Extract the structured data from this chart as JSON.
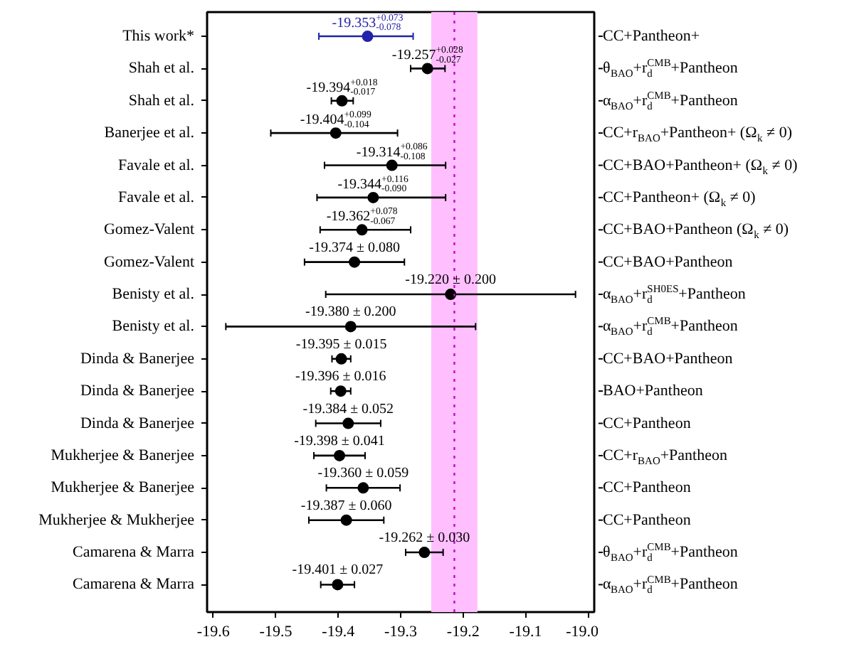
{
  "chart_data": {
    "type": "scatter",
    "orientation": "horizontal",
    "marker": "circle",
    "grid": false,
    "categories": [
      "This work*",
      "Shah et al.",
      "Shah et al.",
      "Banerjee et al.",
      "Favale et al.",
      "Favale et al.",
      "Gomez-Valent",
      "Gomez-Valent",
      "Benisty et al.",
      "Benisty et al.",
      "Dinda & Banerjee",
      "Dinda & Banerjee",
      "Dinda & Banerjee",
      "Mukherjee & Banerjee",
      "Mukherjee & Banerjee",
      "Mukherjee & Mukherjee",
      "Camarena & Marra",
      "Camarena & Marra"
    ],
    "y2_categories": [
      "CC+Pantheon+",
      "θ$_{BAO}$+r$_{d}$$^{CMB}$+Pantheon",
      "α$_{BAO}$+r$_{d}$$^{CMB}$+Pantheon",
      "CC+r$_{BAO}$+Pantheon+ (Ω$_{k}$ ≠ 0)",
      "CC+BAO+Pantheon+ (Ω$_{k}$ ≠ 0)",
      "CC+Pantheon+ (Ω$_{k}$ ≠ 0)",
      "CC+BAO+Pantheon (Ω$_{k}$ ≠ 0)",
      "CC+BAO+Pantheon",
      "α$_{BAO}$+r$_{d}$$^{SH0ES}$+Pantheon",
      "α$_{BAO}$+r$_{d}$$^{CMB}$+Pantheon",
      "CC+BAO+Pantheon",
      "BAO+Pantheon",
      "CC+Pantheon",
      "CC+r$_{BAO}$+Pantheon",
      "CC+Pantheon",
      "CC+Pantheon",
      "θ$_{BAO}$+r$_{d}$$^{CMB}$+Pantheon",
      "α$_{BAO}$+r$_{d}$$^{CMB}$+Pantheon"
    ],
    "values": [
      -19.353,
      -19.257,
      -19.394,
      -19.404,
      -19.314,
      -19.344,
      -19.362,
      -19.374,
      -19.22,
      -19.38,
      -19.395,
      -19.396,
      -19.384,
      -19.398,
      -19.36,
      -19.387,
      -19.262,
      -19.401
    ],
    "errors": [
      [
        -19.431,
        -19.28
      ],
      [
        -19.284,
        -19.229
      ],
      [
        -19.411,
        -19.376
      ],
      [
        -19.508,
        -19.305
      ],
      [
        -19.422,
        -19.228
      ],
      [
        -19.434,
        -19.228
      ],
      [
        -19.429,
        -19.284
      ],
      0.08,
      0.2,
      0.2,
      0.015,
      0.016,
      0.052,
      0.041,
      0.059,
      0.06,
      0.03,
      0.027
    ],
    "value_labels": [
      "-19.353$^{+0.073}$$_{-0.078}$",
      "-19.257$^{+0.028}$$_{-0.027}$",
      "-19.394$^{+0.018}$$_{-0.017}$",
      "-19.404$^{+0.099}$$_{-0.104}$",
      "-19.314$^{+0.086}$$_{-0.108}$",
      "-19.344$^{+0.116}$$_{-0.090}$",
      "-19.362$^{+0.078}$$_{-0.067}$",
      "-19.374 ± 0.080",
      "-19.220 ± 0.200",
      "-19.380 ± 0.200",
      "-19.395 ± 0.015",
      "-19.396 ± 0.016",
      "-19.384 ± 0.052",
      "-19.398 ± 0.041",
      "-19.360 ± 0.059",
      "-19.387 ± 0.060",
      "-19.262 ± 0.030",
      "-19.401 ± 0.027"
    ],
    "colors": [
      "#2222aa",
      "#000000",
      "#000000",
      "#000000",
      "#000000",
      "#000000",
      "#000000",
      "#000000",
      "#000000",
      "#000000",
      "#000000",
      "#000000",
      "#000000",
      "#000000",
      "#000000",
      "#000000",
      "#000000",
      "#000000"
    ],
    "xlim": [
      -19.61,
      -18.99
    ],
    "xticks": [
      -19.6,
      -19.5,
      -19.4,
      -19.3,
      -19.2,
      -19.1,
      {
        "value": -19.0,
        "label": "-19.0"
      }
    ],
    "ref_lines": [
      {
        "axis": "x",
        "value": -19.214,
        "color": "#cc00cc",
        "line_style": "dotted"
      }
    ],
    "bands": [
      {
        "axis": "x",
        "from": -19.251,
        "to": -19.177,
        "color": "#ffbfff"
      }
    ]
  }
}
